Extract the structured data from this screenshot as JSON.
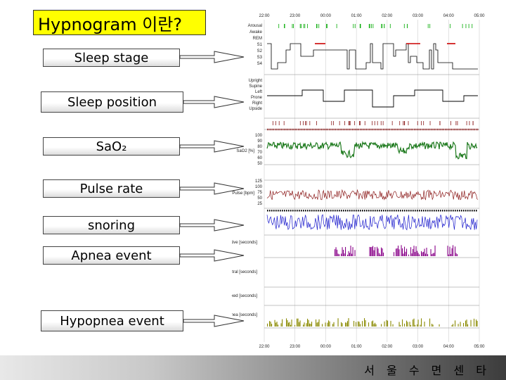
{
  "title": "Hypnogram 이란?",
  "labels": {
    "sleep_stage": "Sleep stage",
    "sleep_position": "Sleep position",
    "sao2": "SaO₂",
    "pulse_rate": "Pulse rate",
    "snoring": "snoring",
    "apnea_event": "Apnea event",
    "hypopnea_event": "Hypopnea event"
  },
  "footer": "서 울 수 면 센 타",
  "chart": {
    "time_top": [
      "22:00",
      "23:00",
      "00:00",
      "01:00",
      "02:00",
      "03:00",
      "04:00",
      "05:00"
    ],
    "time_bottom": [
      "22:00",
      "23:00",
      "00:00",
      "01:00",
      "02:00",
      "03:00",
      "04:00",
      "05:00"
    ],
    "stage_labels": [
      "Arousal",
      "Awake",
      "REM",
      "S1",
      "S2",
      "S3",
      "S4"
    ],
    "position_labels": [
      "Upright",
      "Supine",
      "Left",
      "Prone",
      "Right",
      "Upside"
    ],
    "sao2_labels": [
      "100",
      "90",
      "80",
      "70",
      "60",
      "50"
    ],
    "sao2_unit": "SaO2 [%]",
    "pulse_labels": [
      "125",
      "100",
      "75",
      "50",
      "25"
    ],
    "pulse_unit": "Pulse [bpm]",
    "apnea_unit": "Obstructive [seconds]",
    "central_unit": "Central [seconds]",
    "mixed_unit": "Mixed [seconds]",
    "hypopnea_unit": "Hypopnea [seconds]",
    "colors": {
      "stage": "#000000",
      "stage_rem": "#cc0000",
      "arousal": "#00aa00",
      "sao2": "#1e7a1e",
      "pulse": "#8b1a1a",
      "snoring": "#1a1acc",
      "apnea": "#880088",
      "hypopnea": "#8a8a00"
    }
  }
}
